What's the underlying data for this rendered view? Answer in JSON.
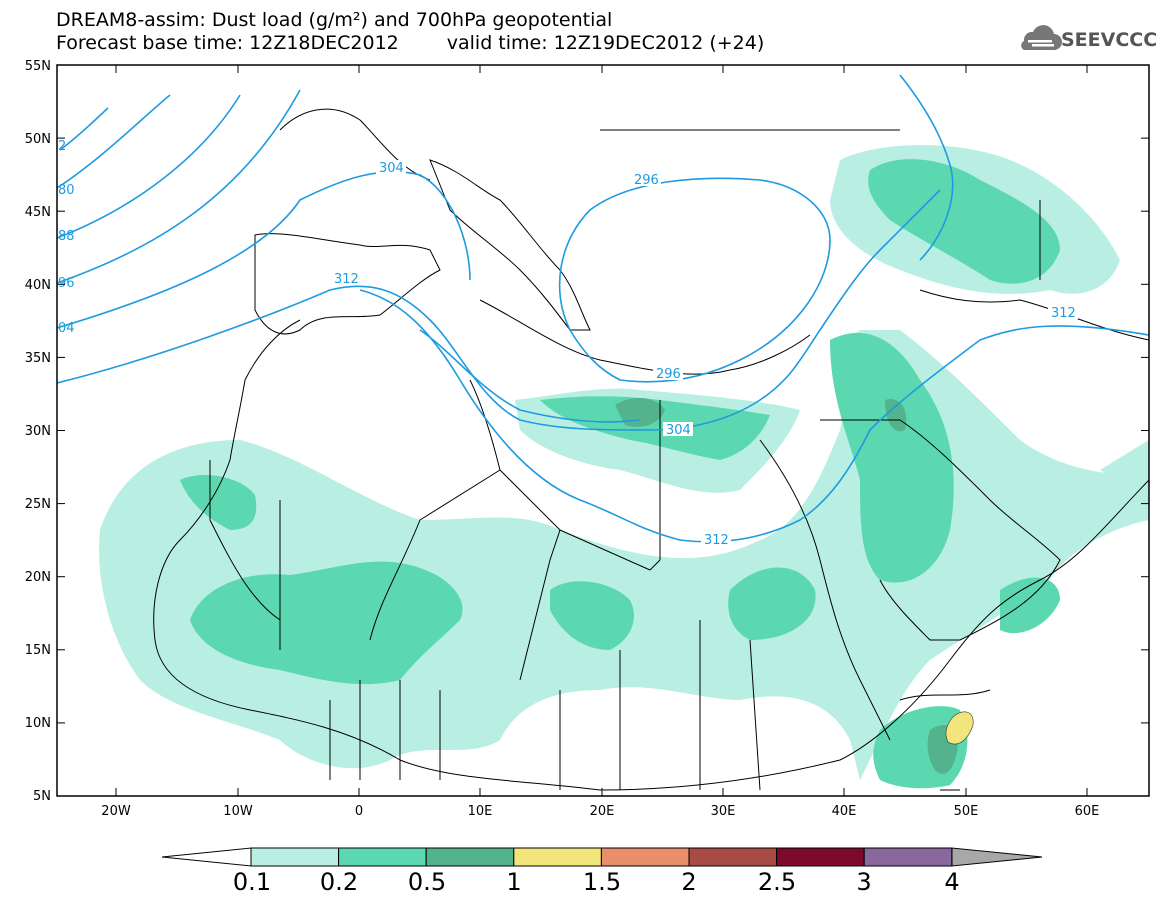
{
  "header": {
    "title_line1": "DREAM8-assim: Dust load (g/m²) and 700hPa geopotential",
    "title_line2_base": "Forecast base time: 12Z18DEC2012",
    "title_line2_valid": "valid time: 12Z19DEC2012 (+24)",
    "logo_text": "SEEVCCC",
    "logo_icon": "cloud-icon"
  },
  "map": {
    "lat_labels": [
      "55N",
      "50N",
      "45N",
      "40N",
      "35N",
      "30N",
      "25N",
      "20N",
      "15N",
      "10N",
      "5N"
    ],
    "lon_labels": [
      "20W",
      "10W",
      "0",
      "10E",
      "20E",
      "30E",
      "40E",
      "50E",
      "60E"
    ],
    "contour_labels": [
      "304",
      "296",
      "312",
      "296",
      "304",
      "312",
      "312",
      "2",
      "80",
      "88",
      "96",
      "04"
    ],
    "colors": {
      "contour": "#1e9be0",
      "border": "#000000"
    }
  },
  "colorbar": {
    "labels": [
      "0.1",
      "0.2",
      "0.5",
      "1",
      "1.5",
      "2",
      "2.5",
      "3",
      "4"
    ],
    "colors": [
      "#b9efe3",
      "#5cd8b0",
      "#53b38d",
      "#f1e57b",
      "#e9906a",
      "#a74b44",
      "#7b0a2c",
      "#8a689e",
      "#a8a8a8"
    ]
  }
}
